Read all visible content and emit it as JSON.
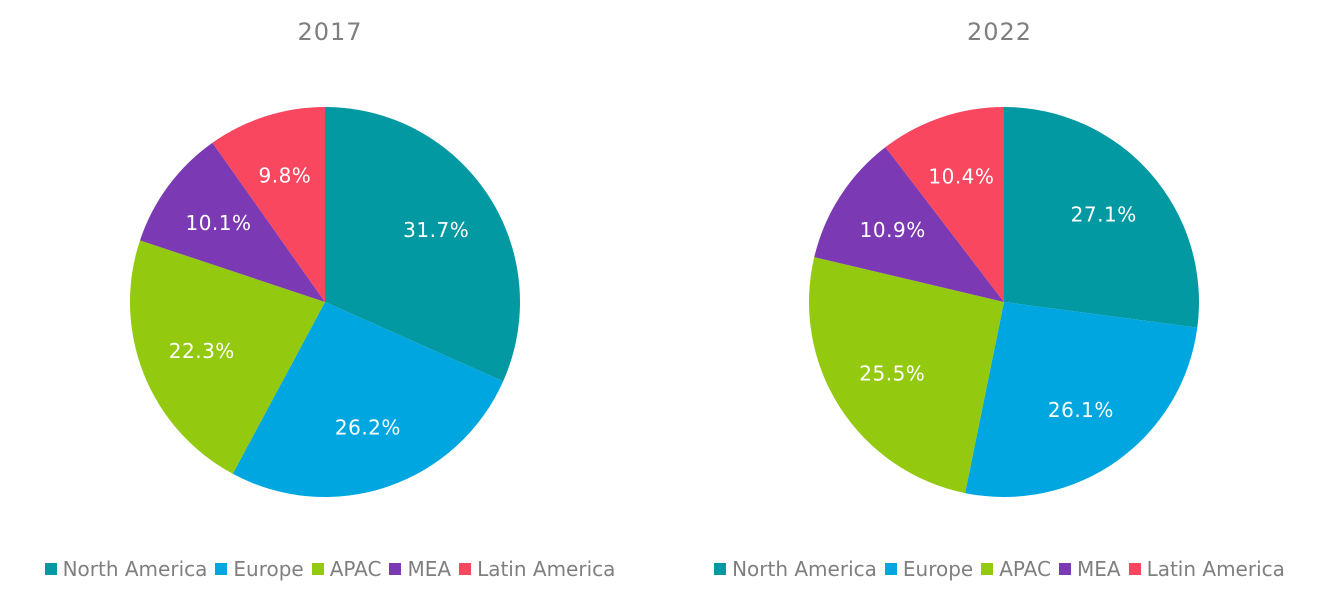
{
  "chart_data": [
    {
      "type": "pie",
      "title": "2017",
      "categories": [
        "North America",
        "Europe",
        "APAC",
        "MEA",
        "Latin America"
      ],
      "values": [
        31.7,
        26.2,
        22.3,
        10.1,
        9.8
      ],
      "labels": [
        "31.7%",
        "26.2%",
        "22.3%",
        "10.1%",
        "9.8%"
      ],
      "colors": [
        "#0399a3",
        "#00a6e0",
        "#93c90f",
        "#7b3ab3",
        "#f94760"
      ],
      "legend_position": "bottom"
    },
    {
      "type": "pie",
      "title": "2022",
      "categories": [
        "North America",
        "Europe",
        "APAC",
        "MEA",
        "Latin America"
      ],
      "values": [
        27.1,
        26.1,
        25.5,
        10.9,
        10.4
      ],
      "labels": [
        "27.1%",
        "26.1%",
        "25.5%",
        "10.9%",
        "10.4%"
      ],
      "colors": [
        "#0399a3",
        "#00a6e0",
        "#93c90f",
        "#7b3ab3",
        "#f94760"
      ],
      "legend_position": "bottom"
    }
  ]
}
